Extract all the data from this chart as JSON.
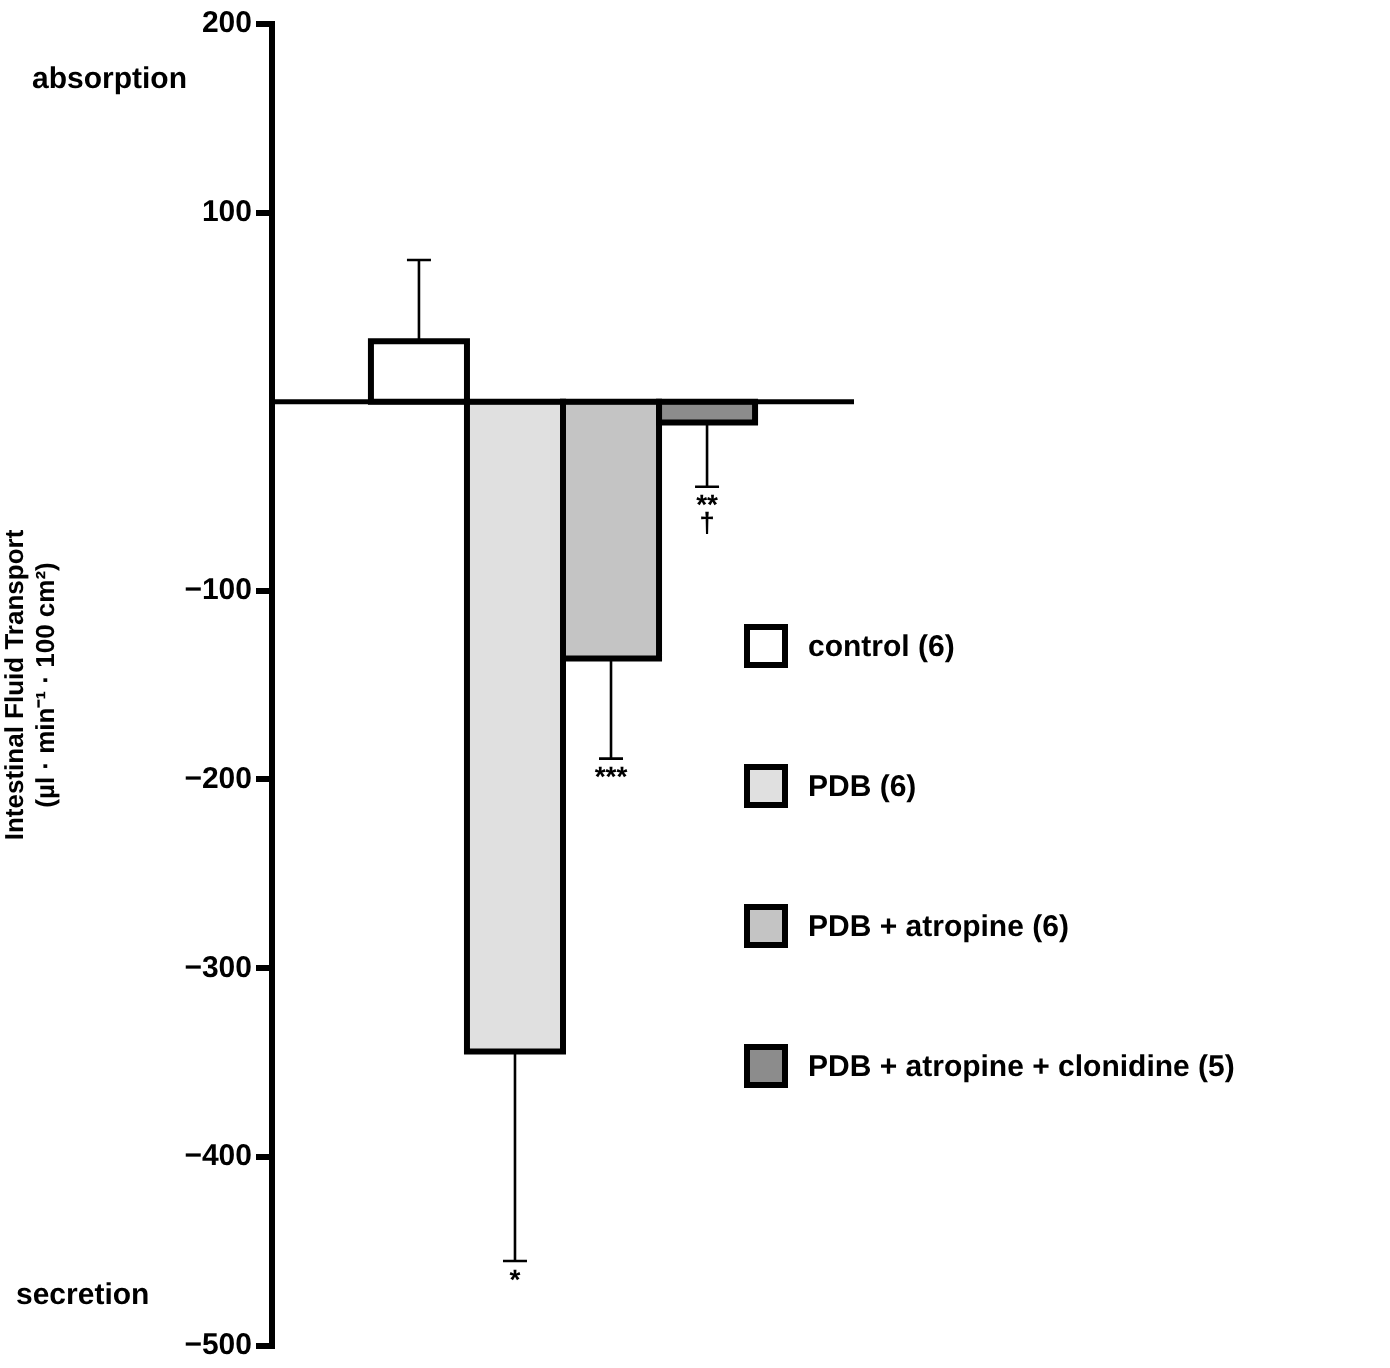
{
  "chart_data": {
    "type": "bar",
    "ylabel": "Intestinal Fluid Transport\n(µl · min⁻¹ · 100 cm²)",
    "categories": [
      null
    ],
    "series": [
      {
        "name": "control (6)",
        "color": "#ffffff",
        "values": [
          32
        ],
        "errors": [
          [
            32,
            75
          ]
        ]
      },
      {
        "name": "PDB (6)",
        "color": "#e0e0e0",
        "values": [
          -344
        ],
        "errors": [
          [
            -455,
            -344
          ]
        ]
      },
      {
        "name": "PDB + atropine (6)",
        "color": "#c4c4c4",
        "values": [
          -136
        ],
        "errors": [
          [
            -189,
            -136
          ]
        ]
      },
      {
        "name": "PDB + atropine + clonidine (5)",
        "color": "#8c8c8c",
        "values": [
          -11
        ],
        "errors": [
          [
            -45,
            -11
          ]
        ]
      }
    ],
    "ylim": [
      -500,
      200
    ],
    "yticks": [
      -500,
      -400,
      -300,
      -200,
      -100,
      100,
      200
    ],
    "ref_lines": [
      {
        "axis": "y",
        "value": 0
      }
    ],
    "annotations": [
      "absorption",
      "secretion",
      {
        "text": "*",
        "y": -455
      },
      {
        "text": "***",
        "y": -189
      },
      {
        "text": "**\n†",
        "y": -45
      }
    ],
    "legend": "right",
    "grid": false
  }
}
